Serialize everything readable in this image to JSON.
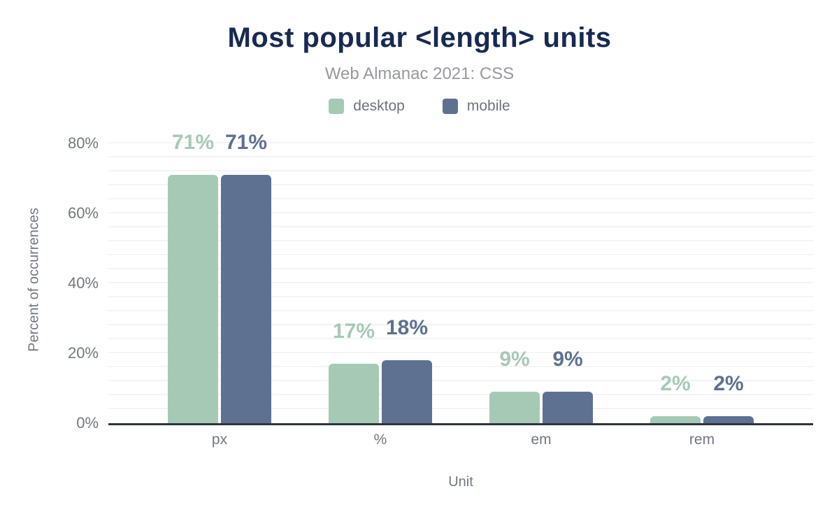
{
  "chart_data": {
    "type": "bar",
    "title": "Most popular <length> units",
    "subtitle": "Web Almanac 2021: CSS",
    "categories": [
      "px",
      "%",
      "em",
      "rem"
    ],
    "series": [
      {
        "name": "desktop",
        "color": "#a6c9b6",
        "values": [
          71,
          17,
          9,
          2
        ]
      },
      {
        "name": "mobile",
        "color": "#5e7190",
        "values": [
          71,
          18,
          9,
          2
        ]
      }
    ],
    "value_label_format": "{v}%",
    "xlabel": "Unit",
    "ylabel": "Percent of occurrences",
    "ylim": [
      0,
      80
    ],
    "yticks": [
      {
        "value": 0,
        "label": "0%"
      },
      {
        "value": 20,
        "label": "20%"
      },
      {
        "value": 40,
        "label": "40%"
      },
      {
        "value": 60,
        "label": "60%"
      },
      {
        "value": 80,
        "label": "80%"
      }
    ],
    "grid": true,
    "minor_grid_step_pct": 4,
    "legend_position": "top"
  },
  "colors": {
    "title": "#172a52",
    "subtitle": "#97999e",
    "axis_text": "#72787f",
    "axis_line": "#30353a",
    "gridline": "#f4f4f5",
    "background": "#ffffff"
  }
}
